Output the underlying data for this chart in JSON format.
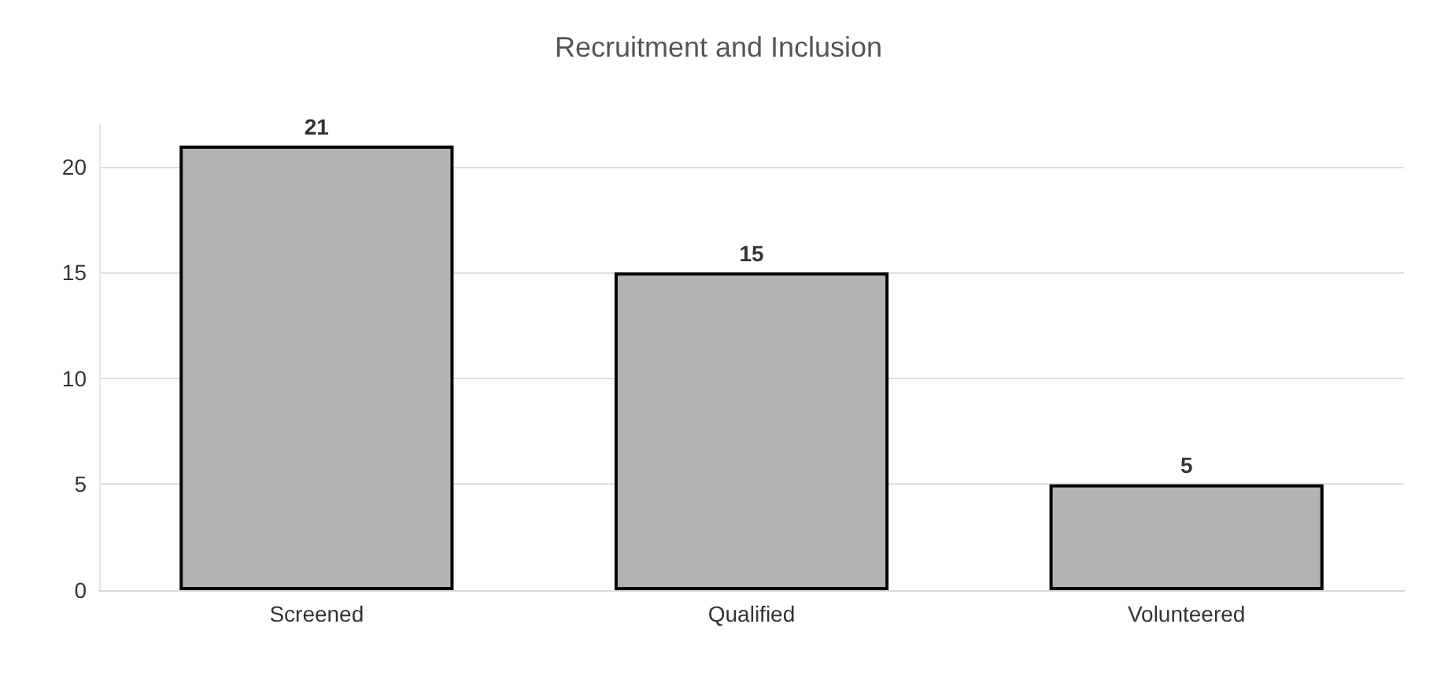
{
  "chart_data": {
    "type": "bar",
    "title": "Recruitment and Inclusion",
    "categories": [
      "Screened",
      "Qualified",
      "Volunteered"
    ],
    "values": [
      21,
      15,
      5
    ],
    "color": "#b3b3b3",
    "ylim": [
      0,
      22
    ],
    "yticks": [
      0,
      5,
      10,
      15,
      20
    ],
    "grid": "y",
    "data_labels": true
  }
}
